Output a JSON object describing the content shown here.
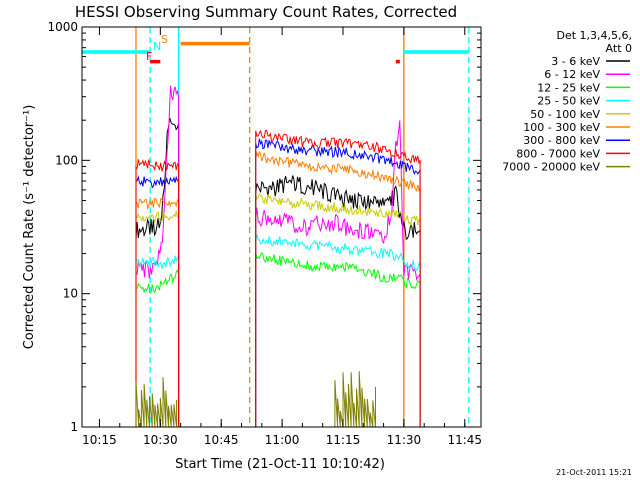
{
  "chart_data": {
    "type": "line",
    "title": "HESSI Observing Summary Count Rates, Corrected",
    "xlabel": "Start Time (21-Oct-11 10:10:42)",
    "ylabel": "Corrected Count Rate (s⁻¹ detector⁻¹)",
    "footer": "21-Oct-2011 15:21",
    "yscale": "log",
    "xlim": [
      "10:10:42",
      "11:49:00"
    ],
    "ylim": [
      1,
      1000
    ],
    "x_ticks": [
      "10:15",
      "10:30",
      "10:45",
      "11:00",
      "11:15",
      "11:30",
      "11:45"
    ],
    "y_ticks": [
      "1",
      "10",
      "100",
      "1000"
    ],
    "legend": {
      "position": "top-right",
      "header": [
        "Det 1,3,4,5,6,",
        "Att 0"
      ]
    },
    "flags": {
      "F": "F",
      "N": "N",
      "S": "S"
    },
    "series": [
      {
        "name": "3 - 6 keV",
        "color": "#000000",
        "segments": [
          {
            "t": [
              "10:24:00",
              "10:28:00",
              "10:30:00",
              "10:31:00",
              "10:32:00",
              "10:33:00",
              "10:34:30"
            ],
            "y": [
              30,
              31,
              33,
              70,
              200,
              180,
              190
            ]
          },
          {
            "t": [
              "10:53:30",
              "10:58:00",
              "11:02:00",
              "11:08:00",
              "11:14:00",
              "11:20:00",
              "11:26:00",
              "11:28:00",
              "11:30:00",
              "11:34:00"
            ],
            "y": [
              62,
              62,
              68,
              62,
              52,
              48,
              46,
              55,
              30,
              30
            ]
          }
        ]
      },
      {
        "name": "6 - 12 keV",
        "color": "#ff00ff",
        "segments": [
          {
            "t": [
              "10:24:00",
              "10:27:00",
              "10:29:00",
              "10:30:30",
              "10:31:30",
              "10:32:30",
              "10:34:30"
            ],
            "y": [
              16,
              15,
              16,
              25,
              100,
              330,
              300
            ]
          },
          {
            "t": [
              "10:53:30",
              "10:58:00",
              "11:02:00",
              "11:06:00",
              "11:10:00",
              "11:14:00",
              "11:18:00",
              "11:22:00",
              "11:25:00",
              "11:27:00",
              "11:28:00",
              "11:29:00",
              "11:30:00",
              "11:34:00"
            ],
            "y": [
              38,
              37,
              34,
              30,
              35,
              33,
              30,
              29,
              28,
              40,
              120,
              170,
              15,
              14
            ]
          }
        ]
      },
      {
        "name": "12 - 25 keV",
        "color": "#00ff00",
        "segments": [
          {
            "t": [
              "10:24:00",
              "10:28:00",
              "10:31:00",
              "10:34:30"
            ],
            "y": [
              11,
              11,
              12,
              14
            ]
          },
          {
            "t": [
              "10:53:30",
              "10:58:00",
              "11:02:00",
              "11:08:00",
              "11:14:00",
              "11:20:00",
              "11:26:00",
              "11:29:00",
              "11:30:00",
              "11:34:00"
            ],
            "y": [
              20,
              18,
              17,
              16,
              16,
              15,
              13,
              13,
              12,
              12
            ]
          }
        ]
      },
      {
        "name": "25 - 50 keV",
        "color": "#00ffff",
        "segments": [
          {
            "t": [
              "10:24:00",
              "10:28:00",
              "10:31:00",
              "10:34:30"
            ],
            "y": [
              17,
              17,
              17,
              18
            ]
          },
          {
            "t": [
              "10:53:30",
              "10:58:00",
              "11:02:00",
              "11:08:00",
              "11:14:00",
              "11:20:00",
              "11:26:00",
              "11:29:00",
              "11:30:00",
              "11:34:00"
            ],
            "y": [
              26,
              25,
              24,
              23,
              22,
              21,
              20,
              19,
              17,
              16
            ]
          }
        ]
      },
      {
        "name": "50 - 100 keV",
        "color": "#cccc00",
        "segments": [
          {
            "t": [
              "10:24:00",
              "10:28:00",
              "10:31:00",
              "10:34:30"
            ],
            "y": [
              37,
              37,
              38,
              40
            ]
          },
          {
            "t": [
              "10:53:30",
              "10:58:00",
              "11:02:00",
              "11:08:00",
              "11:14:00",
              "11:20:00",
              "11:26:00",
              "11:29:00",
              "11:30:00",
              "11:34:00"
            ],
            "y": [
              52,
              50,
              48,
              46,
              44,
              42,
              40,
              38,
              36,
              35
            ]
          }
        ]
      },
      {
        "name": "100 - 300 keV",
        "color": "#ff8000",
        "segments": [
          {
            "t": [
              "10:24:00",
              "10:28:00",
              "10:31:00",
              "10:34:30"
            ],
            "y": [
              48,
              47,
              48,
              50
            ]
          },
          {
            "t": [
              "10:53:30",
              "10:58:00",
              "11:02:00",
              "11:08:00",
              "11:14:00",
              "11:20:00",
              "11:26:00",
              "11:30:00",
              "11:34:00"
            ],
            "y": [
              108,
              100,
              95,
              90,
              86,
              80,
              74,
              68,
              62
            ]
          }
        ]
      },
      {
        "name": "300 - 800 keV",
        "color": "#0000ff",
        "segments": [
          {
            "t": [
              "10:24:00",
              "10:28:00",
              "10:31:00",
              "10:34:30"
            ],
            "y": [
              70,
              68,
              68,
              70
            ]
          },
          {
            "t": [
              "10:53:30",
              "10:58:00",
              "11:02:00",
              "11:08:00",
              "11:14:00",
              "11:20:00",
              "11:26:00",
              "11:30:00",
              "11:34:00"
            ],
            "y": [
              135,
              128,
              122,
              118,
              115,
              110,
              100,
              90,
              85
            ]
          }
        ]
      },
      {
        "name": "800 - 7000 keV",
        "color": "#ff0000",
        "segments": [
          {
            "t": [
              "10:24:00",
              "10:28:00",
              "10:31:00",
              "10:34:30"
            ],
            "y": [
              95,
              92,
              90,
              92
            ]
          },
          {
            "t": [
              "10:53:30",
              "10:58:00",
              "11:02:00",
              "11:08:00",
              "11:14:00",
              "11:20:00",
              "11:26:00",
              "11:30:00",
              "11:34:00"
            ],
            "y": [
              160,
              150,
              140,
              135,
              135,
              130,
              120,
              108,
              100
            ]
          }
        ]
      },
      {
        "name": "7000 - 20000 keV",
        "color": "#808000",
        "segments": [
          {
            "t": [
              "10:24:00",
              "10:25:00",
              "10:26:00",
              "10:27:00",
              "10:28:00",
              "10:29:00",
              "10:30:00",
              "10:31:00",
              "10:32:00",
              "10:33:00",
              "10:34:00"
            ],
            "y": [
              2,
              1.5,
              2,
              1.3,
              2,
              1.5,
              1.7,
              2,
              1.4,
              2,
              1.6
            ]
          },
          {
            "t": [
              "11:13:00",
              "11:14:00",
              "11:15:00",
              "11:16:00",
              "11:17:00",
              "11:18:00",
              "11:19:00",
              "11:20:00",
              "11:21:00",
              "11:22:00",
              "11:23:00"
            ],
            "y": [
              2,
              1.5,
              2,
              1.7,
              2,
              1.4,
              2,
              1.8,
              2,
              1.5,
              2
            ]
          }
        ]
      }
    ],
    "intervals": [
      {
        "label": "N",
        "color": "#00ffff",
        "y": 650,
        "ranges": [
          [
            "10:10:42",
            "10:27:30"
          ],
          [
            "11:30:00",
            "11:46:00"
          ]
        ]
      },
      {
        "label": "S",
        "color": "#ff8000",
        "y": 750,
        "ranges": [
          [
            "10:35:00",
            "10:52:00"
          ]
        ]
      },
      {
        "label": "F",
        "color": "#ff0000",
        "y": 550,
        "ranges": [
          [
            "10:27:30",
            "10:30:00"
          ],
          [
            "11:28:00",
            "11:29:00"
          ]
        ]
      }
    ],
    "markers": [
      {
        "time": "10:24:00",
        "color": "#ff8000",
        "style": "solid"
      },
      {
        "time": "10:27:30",
        "color": "#00ffff",
        "style": "dashed"
      },
      {
        "time": "10:34:30",
        "color": "#ff8000",
        "style": "solid"
      },
      {
        "time": "10:34:30",
        "color": "#00ffff",
        "style": "solid"
      },
      {
        "time": "10:52:00",
        "color": "#ff8000",
        "style": "dashed"
      },
      {
        "time": "11:30:00",
        "color": "#00ffff",
        "style": "solid"
      },
      {
        "time": "11:30:00",
        "color": "#ff8000",
        "style": "solid"
      },
      {
        "time": "11:46:00",
        "color": "#00ffff",
        "style": "dashed"
      }
    ]
  }
}
